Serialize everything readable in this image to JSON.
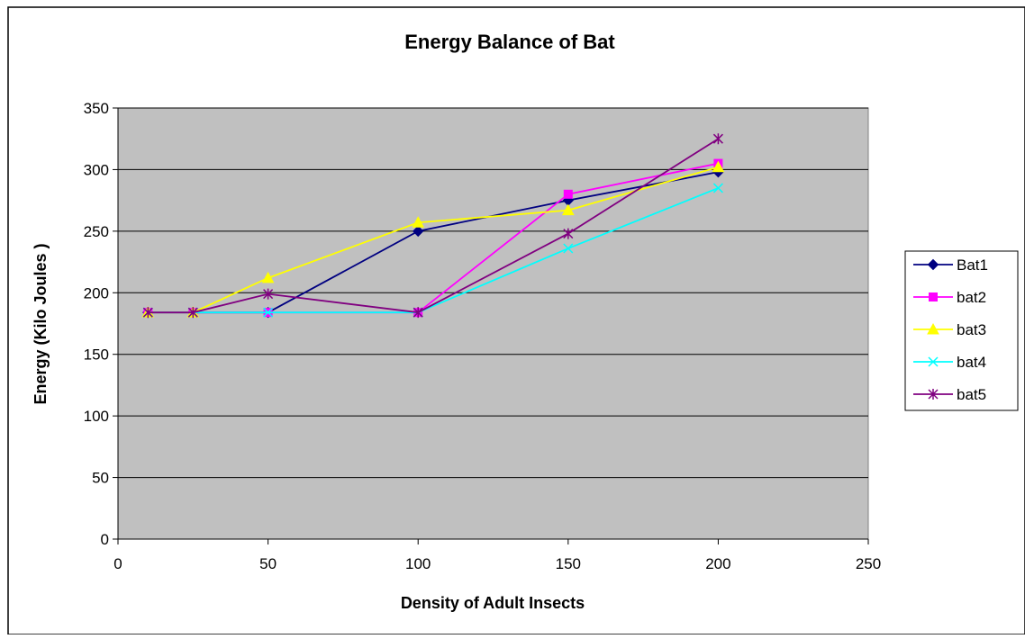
{
  "chart_data": {
    "type": "line",
    "title": "Energy Balance of Bat",
    "xlabel": "Density of Adult Insects",
    "ylabel": "Energy (Kilo Joules )",
    "xlim": [
      0,
      250
    ],
    "ylim": [
      0,
      350
    ],
    "xticks": [
      0,
      50,
      100,
      150,
      200,
      250
    ],
    "yticks": [
      0,
      50,
      100,
      150,
      200,
      250,
      300,
      350
    ],
    "xtick_labels": [
      "0",
      "50",
      "100",
      "150",
      "200",
      "250"
    ],
    "ytick_labels": [
      "0",
      "50",
      "100",
      "150",
      "200",
      "250",
      "300",
      "350"
    ],
    "grid": "horizontal",
    "plot_background": "#c0c0c0",
    "legend_position": "right",
    "series": [
      {
        "name": "Bat1",
        "color": "#000080",
        "marker": "diamond",
        "x": [
          10,
          25,
          50,
          100,
          150,
          200
        ],
        "y": [
          184,
          184,
          184,
          250,
          275,
          298
        ]
      },
      {
        "name": "bat2",
        "color": "#ff00ff",
        "marker": "square",
        "x": [
          10,
          25,
          50,
          100,
          150,
          200
        ],
        "y": [
          184,
          184,
          184,
          184,
          280,
          305
        ]
      },
      {
        "name": "bat3",
        "color": "#ffff00",
        "marker": "triangle",
        "x": [
          10,
          25,
          50,
          100,
          150,
          200
        ],
        "y": [
          184,
          184,
          212,
          257,
          267,
          302
        ]
      },
      {
        "name": "bat4",
        "color": "#00ffff",
        "marker": "x",
        "x": [
          10,
          25,
          50,
          100,
          150,
          200
        ],
        "y": [
          184,
          184,
          184,
          184,
          236,
          285
        ]
      },
      {
        "name": "bat5",
        "color": "#800080",
        "marker": "star",
        "x": [
          10,
          25,
          50,
          100,
          150,
          200
        ],
        "y": [
          184,
          184,
          199,
          184,
          248,
          325
        ]
      }
    ]
  }
}
